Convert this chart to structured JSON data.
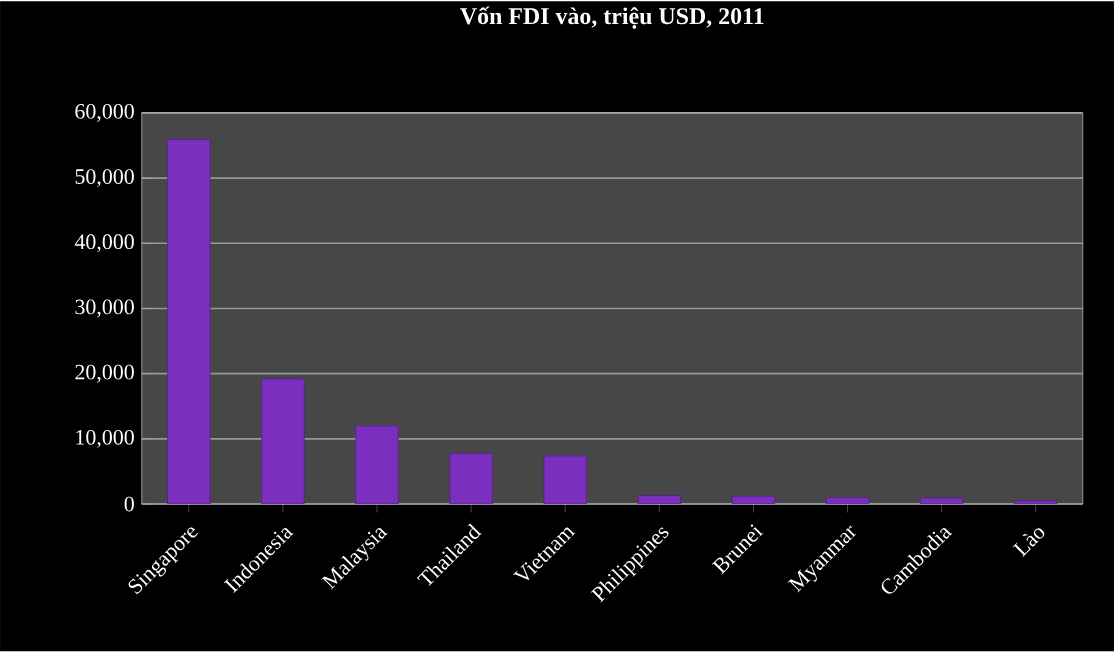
{
  "chart_data": {
    "type": "bar",
    "title": "Vốn FDI vào, triệu USD, 2011",
    "categories": [
      "Singapore",
      "Indonesia",
      "Malaysia",
      "Thailand",
      "Vietnam",
      "Philippines",
      "Brunei",
      "Myanmar",
      "Cambodia",
      "Lào"
    ],
    "values": [
      55900,
      19200,
      12000,
      7800,
      7400,
      1300,
      1200,
      1000,
      900,
      500
    ],
    "color": "#7b2fbe",
    "ylim": [
      0,
      60000
    ],
    "yticks": [
      {
        "value": 0,
        "label": "0"
      },
      {
        "value": 10000,
        "label": "10,000"
      },
      {
        "value": 20000,
        "label": "20,000"
      },
      {
        "value": 30000,
        "label": "30,000"
      },
      {
        "value": 40000,
        "label": "40,000"
      },
      {
        "value": 50000,
        "label": "50,000"
      },
      {
        "value": 60000,
        "label": "60,000"
      }
    ],
    "grid": "y"
  }
}
